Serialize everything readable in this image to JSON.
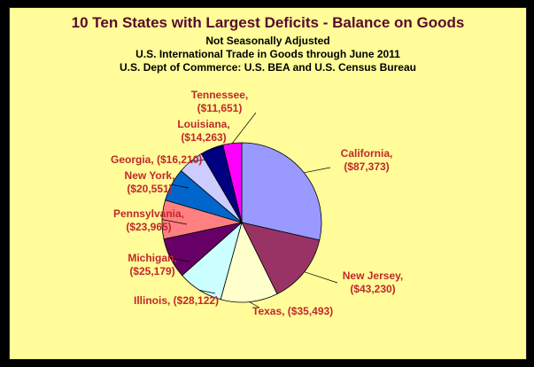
{
  "chart_data": {
    "type": "pie",
    "title": "10 Ten States with Largest Deficits - Balance on Goods",
    "subtitles": [
      "Not Seasonally Adjusted",
      "U.S. International Trade in Goods through June 2011",
      "U.S. Dept of Commerce: U.S. BEA and U.S. Census Bureau"
    ],
    "categories": [
      "California",
      "New Jersey",
      "Texas",
      "Illinois",
      "Michigan",
      "Pennsylvania",
      "New York",
      "Georgia",
      "Louisiana",
      "Tennessee"
    ],
    "values": [
      87373,
      43230,
      35493,
      28122,
      25179,
      23965,
      20551,
      16210,
      14263,
      11651
    ],
    "labels": [
      [
        "California,",
        "($87,373)"
      ],
      [
        "New Jersey,",
        "($43,230)"
      ],
      [
        "Texas, ($35,493)"
      ],
      [
        "Illinois, ($28,122)"
      ],
      [
        "Michigan,",
        "($25,179)"
      ],
      [
        "Pennsylvania,",
        "($23,965)"
      ],
      [
        "New York,",
        "($20,551)"
      ],
      [
        "Georgia, ($16,210)"
      ],
      [
        "Louisiana,",
        "($14,263)"
      ],
      [
        "Tennessee,",
        "($11,651)"
      ]
    ],
    "colors": [
      "#9999ff",
      "#993366",
      "#ffffcc",
      "#ccffff",
      "#660066",
      "#ff8080",
      "#0066cc",
      "#ccccff",
      "#000080",
      "#ff00ff"
    ],
    "legend": "none"
  }
}
